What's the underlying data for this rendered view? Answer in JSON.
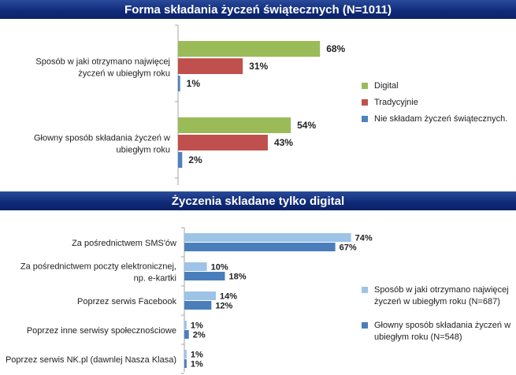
{
  "chart_data": [
    {
      "type": "bar",
      "orientation": "horizontal",
      "title": "Forma składania życzeń świątecznych (N=1011)",
      "categories": [
        [
          "Sposób w jaki otrzymano najwięcej",
          "życzeń w ubiegłym roku"
        ],
        [
          "Głowny sposób składania życzeń w",
          "ubiegłym roku"
        ]
      ],
      "series": [
        {
          "name": "Digital",
          "color": "#9bbb59",
          "values": [
            68,
            54
          ],
          "labels": [
            "68%",
            "54%"
          ]
        },
        {
          "name": "Tradycyjnie",
          "color": "#c0504d",
          "values": [
            31,
            43
          ],
          "labels": [
            "31%",
            "43%"
          ]
        },
        {
          "name": "Nie składam życzeń świątecznych.",
          "color": "#4f81bd",
          "values": [
            1,
            2
          ],
          "labels": [
            "1%",
            "2%"
          ]
        }
      ],
      "xlim": [
        0,
        100
      ],
      "grid": false,
      "legend_position": "right"
    },
    {
      "type": "bar",
      "orientation": "horizontal",
      "title": "Życzenia skladane tylko digital",
      "categories": [
        [
          "Za pośrednictwem SMS'ów"
        ],
        [
          "Za pośrednictwem poczty elektronicznej,",
          "np. e-kartki"
        ],
        [
          "Poprzez serwis Facebook"
        ],
        [
          "Poprzez inne serwisy społecznościowe"
        ],
        [
          "Poprzez serwis NK.pl (dawnlej Nasza Klasa)"
        ]
      ],
      "series": [
        {
          "name": "Sposób w jaki otrzymano najwięcej życzeń w ubiegłym roku (N=687)",
          "legend_lines": [
            "Sposób w jaki otrzymano najwięcej",
            "życzeń w ubiegłym roku (N=687)"
          ],
          "color": "#9dc3e6",
          "values": [
            74,
            10,
            14,
            1,
            1
          ],
          "labels": [
            "74%",
            "10%",
            "14%",
            "1%",
            "1%"
          ]
        },
        {
          "name": "Głowny sposób składania życzeń w ubiegłym roku (N=548)",
          "legend_lines": [
            "Głowny sposób składania życzeń w",
            "ubiegłym roku (N=548)"
          ],
          "color": "#4a7ebb",
          "values": [
            67,
            18,
            12,
            2,
            1
          ],
          "labels": [
            "67%",
            "18%",
            "12%",
            "2%",
            "1%"
          ]
        }
      ],
      "xlim": [
        0,
        100
      ],
      "grid": false,
      "legend_position": "right"
    }
  ]
}
